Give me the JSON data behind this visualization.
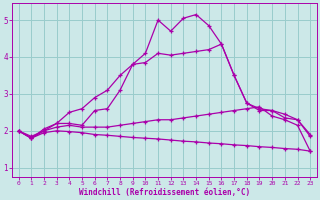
{
  "xlabel": "Windchill (Refroidissement éolien,°C)",
  "background_color": "#cce8e8",
  "grid_color": "#99cccc",
  "line_color": "#aa00aa",
  "xmin": 0,
  "xmax": 23,
  "ymin": 0.75,
  "ymax": 5.45,
  "yticks": [
    1,
    2,
    3,
    4,
    5
  ],
  "xticks": [
    0,
    1,
    2,
    3,
    4,
    5,
    6,
    7,
    8,
    9,
    10,
    11,
    12,
    13,
    14,
    15,
    16,
    17,
    18,
    19,
    20,
    21,
    22,
    23
  ],
  "curve_peak_x": [
    0,
    1,
    2,
    3,
    4,
    5,
    6,
    7,
    8,
    9,
    10,
    11,
    12,
    13,
    14,
    15,
    16,
    17,
    18,
    19,
    20,
    21,
    22,
    23
  ],
  "curve_peak_y": [
    2.0,
    1.8,
    2.0,
    2.2,
    2.5,
    2.6,
    2.9,
    3.1,
    3.5,
    3.8,
    4.1,
    5.0,
    4.7,
    5.05,
    5.15,
    4.85,
    4.35,
    3.5,
    2.75,
    2.55,
    2.55,
    2.35,
    2.3,
    1.9
  ],
  "curve_mid_x": [
    0,
    1,
    2,
    3,
    4,
    5,
    6,
    7,
    8,
    9,
    10,
    11,
    12,
    13,
    14,
    15,
    16,
    17,
    18,
    19,
    20,
    21,
    22,
    23
  ],
  "curve_mid_y": [
    2.0,
    1.8,
    2.05,
    2.2,
    2.2,
    2.15,
    2.55,
    2.6,
    3.1,
    3.8,
    3.85,
    4.1,
    4.05,
    4.1,
    4.15,
    4.2,
    4.35,
    3.5,
    2.75,
    2.6,
    2.55,
    2.45,
    2.3,
    1.85
  ],
  "curve_up_x": [
    0,
    1,
    2,
    3,
    4,
    5,
    6,
    7,
    8,
    9,
    10,
    11,
    12,
    13,
    14,
    15,
    16,
    17,
    18,
    19,
    20,
    21,
    22,
    23
  ],
  "curve_up_y": [
    2.0,
    1.85,
    2.0,
    2.1,
    2.15,
    2.1,
    2.1,
    2.1,
    2.15,
    2.2,
    2.25,
    2.3,
    2.3,
    2.35,
    2.4,
    2.45,
    2.5,
    2.55,
    2.6,
    2.65,
    2.4,
    2.3,
    2.15,
    1.45
  ],
  "curve_down_x": [
    0,
    1,
    2,
    3,
    4,
    5,
    6,
    7,
    8,
    9,
    10,
    11,
    12,
    13,
    14,
    15,
    16,
    17,
    18,
    19,
    20,
    21,
    22,
    23
  ],
  "curve_down_y": [
    2.0,
    1.8,
    1.95,
    2.0,
    1.98,
    1.95,
    1.9,
    1.88,
    1.85,
    1.82,
    1.8,
    1.78,
    1.75,
    1.72,
    1.7,
    1.67,
    1.65,
    1.62,
    1.6,
    1.57,
    1.55,
    1.52,
    1.5,
    1.45
  ]
}
